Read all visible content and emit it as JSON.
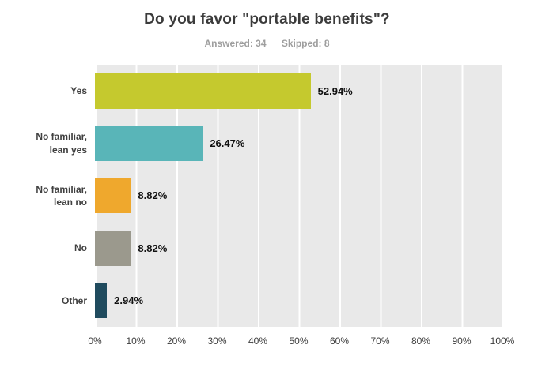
{
  "header": {
    "title": "Do you favor \"portable benefits\"?",
    "answered_label": "Answered: 34",
    "skipped_label": "Skipped: 8"
  },
  "chart_data": {
    "type": "bar",
    "orientation": "horizontal",
    "title": "Do you favor \"portable benefits\"?",
    "answered": 34,
    "skipped": 8,
    "categories": [
      "Yes",
      "No familiar,\nlean yes",
      "No familiar,\nlean no",
      "No",
      "Other"
    ],
    "values": [
      52.94,
      26.47,
      8.82,
      8.82,
      2.94
    ],
    "value_labels": [
      "52.94%",
      "26.47%",
      "8.82%",
      "8.82%",
      "2.94%"
    ],
    "colors": [
      "#c5c92e",
      "#59b5b8",
      "#efa82d",
      "#9b998d",
      "#204b5e"
    ],
    "xlim": [
      0,
      100
    ],
    "x_ticks": [
      "0%",
      "10%",
      "20%",
      "30%",
      "40%",
      "50%",
      "60%",
      "70%",
      "80%",
      "90%",
      "100%"
    ],
    "grid": true,
    "legend": "none",
    "plot_bg": "#e9e9e9"
  }
}
